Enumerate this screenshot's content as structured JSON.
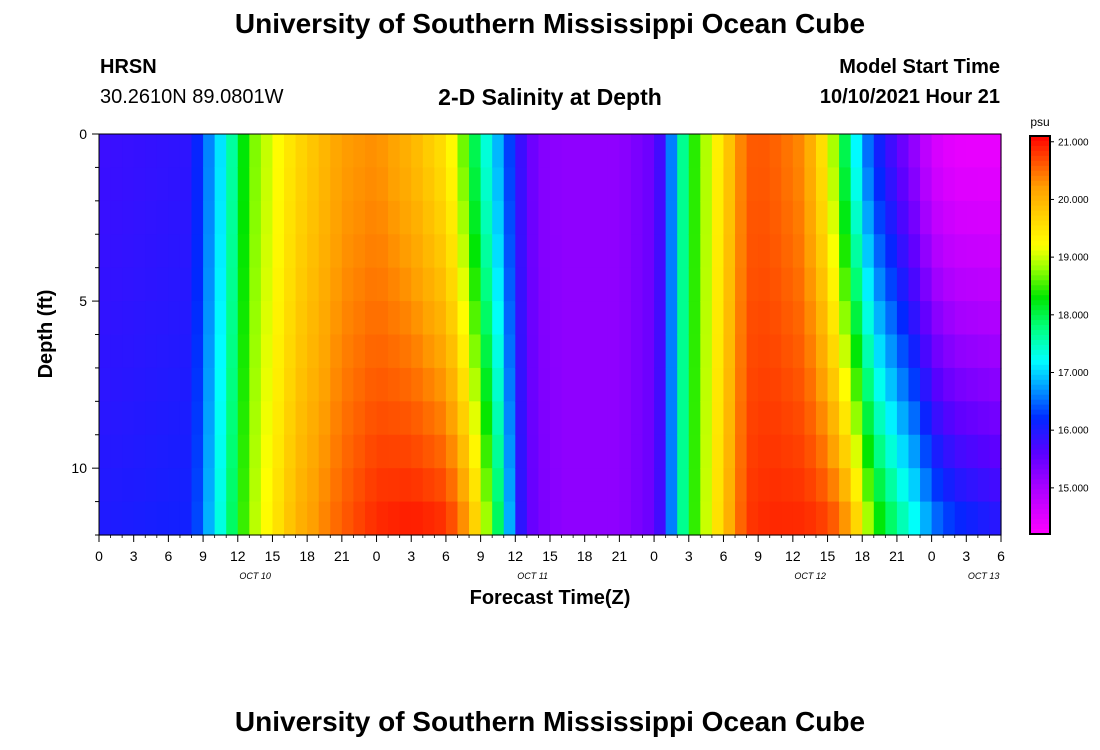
{
  "header": {
    "title": "University of Southern Mississippi Ocean Cube",
    "station": "HRSN",
    "coordinates": "30.2610N  89.0801W",
    "subtitle": "2-D Salinity at Depth",
    "model_label": "Model Start Time",
    "model_time": "10/10/2021 Hour 21"
  },
  "footer": {
    "title": "University of Southern Mississippi Ocean Cube"
  },
  "chart_data": {
    "type": "heatmap",
    "title": "2-D Salinity at Depth",
    "xlabel": "Forecast Time(Z)",
    "ylabel": "Depth (ft)",
    "x_ticks": [
      "0",
      "3",
      "6",
      "9",
      "12",
      "15",
      "18",
      "21",
      "0",
      "3",
      "6",
      "9",
      "12",
      "15",
      "18",
      "21",
      "0",
      "3",
      "6",
      "9",
      "12",
      "15",
      "18",
      "21",
      "0",
      "3",
      "6"
    ],
    "date_labels": [
      {
        "label": "OCT 10",
        "tick_index": 4.5
      },
      {
        "label": "OCT 11",
        "tick_index": 12.5
      },
      {
        "label": "OCT 12",
        "tick_index": 20.5
      },
      {
        "label": "OCT 13",
        "tick_index": 25.5
      }
    ],
    "x_range_hours": [
      0,
      78
    ],
    "y_range_ft": [
      0,
      12
    ],
    "y_ticks": [
      "0",
      "5",
      "10"
    ],
    "colorbar": {
      "unit": "psu",
      "range": [
        14.2,
        21.1
      ],
      "tick_labels": [
        "21.000",
        "20.000",
        "19.000",
        "18.000",
        "17.000",
        "16.000",
        "15.000"
      ],
      "tick_values": [
        21,
        20,
        19,
        18,
        17,
        16,
        15
      ]
    },
    "salinity_profile": {
      "description": "Approximate salinity (psu) at surface (0 ft) and bottom (12 ft) versus forecast hour",
      "hours": [
        0,
        8,
        9,
        11,
        13,
        17,
        21,
        24,
        27,
        30,
        31,
        32,
        33,
        35,
        36,
        37,
        38,
        40,
        45,
        48,
        49,
        50,
        51,
        54,
        56,
        58,
        61,
        63,
        64,
        65,
        66,
        67,
        69,
        71,
        72,
        74,
        78
      ],
      "surface": [
        15.8,
        15.9,
        16.4,
        17.3,
        18.6,
        19.6,
        20.2,
        20.3,
        20.0,
        19.5,
        19.0,
        18.3,
        17.6,
        16.6,
        16.0,
        15.6,
        15.3,
        15.2,
        15.2,
        15.5,
        16.0,
        17.2,
        18.2,
        19.6,
        20.6,
        20.6,
        20.3,
        19.3,
        18.4,
        17.5,
        16.8,
        16.2,
        15.6,
        15.0,
        14.6,
        14.4,
        14.4
      ],
      "bottom": [
        16.0,
        16.1,
        16.6,
        17.6,
        18.8,
        20.0,
        20.6,
        20.9,
        21.0,
        20.9,
        20.6,
        20.2,
        19.4,
        17.5,
        16.2,
        15.6,
        15.4,
        15.2,
        15.2,
        15.5,
        16.0,
        17.2,
        18.2,
        19.8,
        20.8,
        20.9,
        20.9,
        20.8,
        20.6,
        20.2,
        19.4,
        18.6,
        17.8,
        17.2,
        16.7,
        16.3,
        16.0
      ]
    }
  }
}
